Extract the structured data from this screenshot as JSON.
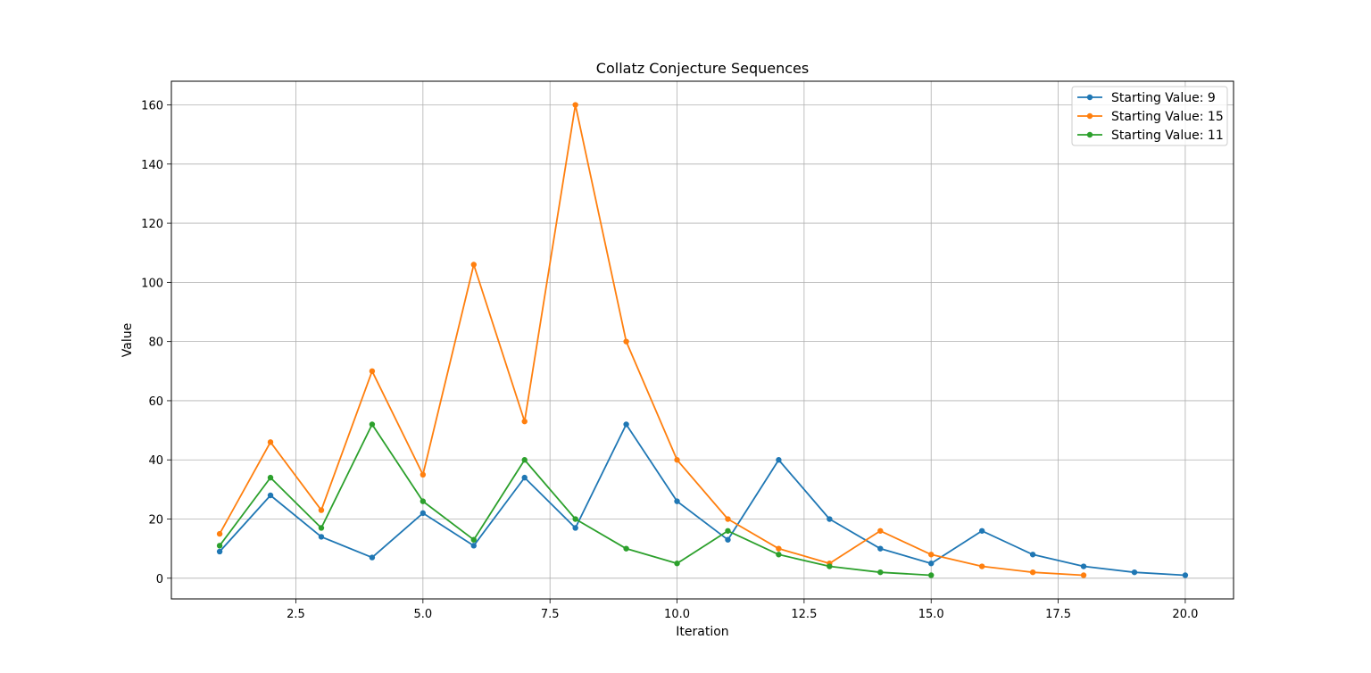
{
  "chart_data": {
    "type": "line",
    "title": "Collatz Conjecture Sequences",
    "xlabel": "Iteration",
    "ylabel": "Value",
    "xlim": [
      0.05,
      20.95
    ],
    "ylim": [
      -7,
      168
    ],
    "x_ticks": [
      2.5,
      5.0,
      7.5,
      10.0,
      12.5,
      15.0,
      17.5,
      20.0
    ],
    "x_tick_labels": [
      "2.5",
      "5.0",
      "7.5",
      "10.0",
      "12.5",
      "15.0",
      "17.5",
      "20.0"
    ],
    "y_ticks": [
      0,
      20,
      40,
      60,
      80,
      100,
      120,
      140,
      160
    ],
    "y_tick_labels": [
      "0",
      "20",
      "40",
      "60",
      "80",
      "100",
      "120",
      "140",
      "160"
    ],
    "grid": true,
    "legend_position": "top-right",
    "series": [
      {
        "name": "Starting Value: 9",
        "color": "#1f77b4",
        "x": [
          1,
          2,
          3,
          4,
          5,
          6,
          7,
          8,
          9,
          10,
          11,
          12,
          13,
          14,
          15,
          16,
          17,
          18,
          19,
          20
        ],
        "values": [
          9,
          28,
          14,
          7,
          22,
          11,
          34,
          17,
          52,
          26,
          13,
          40,
          20,
          10,
          5,
          16,
          8,
          4,
          2,
          1
        ]
      },
      {
        "name": "Starting Value: 15",
        "color": "#ff7f0e",
        "x": [
          1,
          2,
          3,
          4,
          5,
          6,
          7,
          8,
          9,
          10,
          11,
          12,
          13,
          14,
          15,
          16,
          17,
          18
        ],
        "values": [
          15,
          46,
          23,
          70,
          35,
          106,
          53,
          160,
          80,
          40,
          20,
          10,
          5,
          16,
          8,
          4,
          2,
          1
        ]
      },
      {
        "name": "Starting Value: 11",
        "color": "#2ca02c",
        "x": [
          1,
          2,
          3,
          4,
          5,
          6,
          7,
          8,
          9,
          10,
          11,
          12,
          13,
          14,
          15
        ],
        "values": [
          11,
          34,
          17,
          52,
          26,
          13,
          40,
          20,
          10,
          5,
          16,
          8,
          4,
          2,
          1
        ]
      }
    ]
  }
}
